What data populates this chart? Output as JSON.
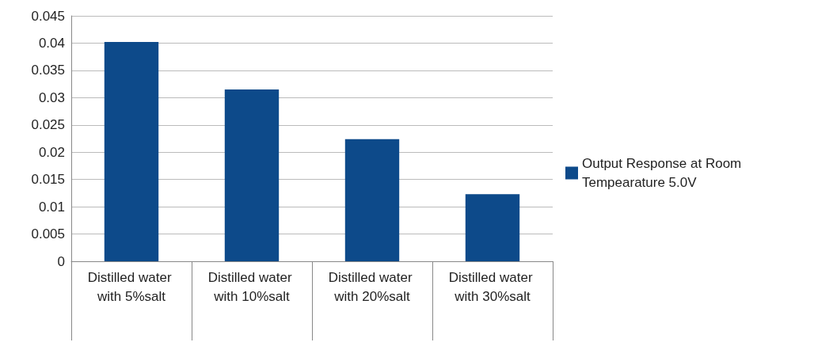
{
  "chart_data": {
    "type": "bar",
    "categories": [
      "Distilled water with 5%salt",
      "Distilled water with 10%salt",
      "Distilled water with 20%salt",
      "Distilled water with 30%salt"
    ],
    "series": [
      {
        "name": "Output Response at Room Tempearature 5.0V",
        "color": "#0d4a8a",
        "values": [
          0.0402,
          0.0315,
          0.0224,
          0.0123
        ]
      }
    ],
    "ylim": [
      0,
      0.045
    ],
    "yticks": [
      0,
      0.005,
      0.01,
      0.015,
      0.02,
      0.025,
      0.03,
      0.035,
      0.04,
      0.045
    ],
    "grid": "y",
    "legend": "right"
  }
}
